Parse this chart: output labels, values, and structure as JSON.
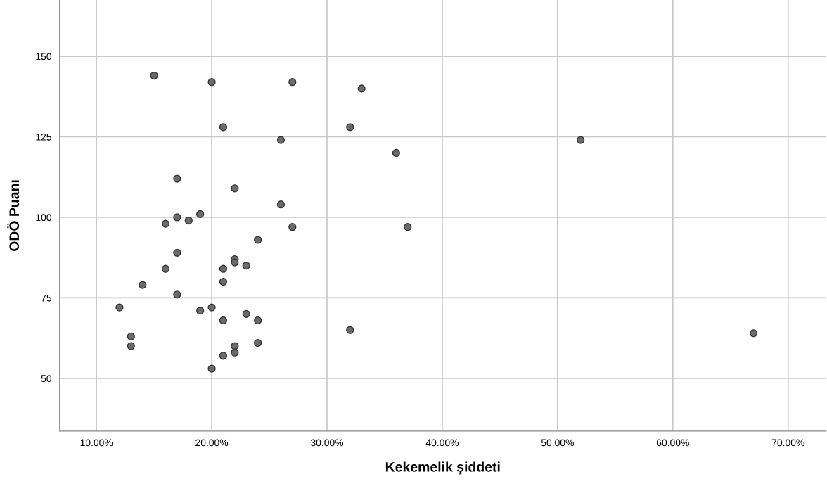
{
  "chart_data": {
    "type": "scatter",
    "xlabel": "Kekemelik şiddeti",
    "ylabel": "ODÖ Puanı",
    "x": [
      15,
      20,
      27,
      33,
      21,
      32,
      26,
      52,
      36,
      17,
      22,
      26,
      19,
      17,
      18,
      16,
      27,
      37,
      24,
      17,
      22,
      22,
      23,
      16,
      21,
      21,
      14,
      17,
      12,
      20,
      19,
      23,
      21,
      24,
      32,
      67,
      13,
      13,
      22,
      24,
      22,
      21,
      20
    ],
    "series": [
      {
        "color": "#6b6b6b",
        "values": [
          144,
          142,
          142,
          140,
          128,
          128,
          124,
          124,
          120,
          112,
          109,
          104,
          101,
          100,
          99,
          98,
          97,
          97,
          93,
          89,
          87,
          86,
          85,
          84,
          84,
          80,
          79,
          76,
          72,
          72,
          71,
          70,
          68,
          68,
          65,
          64,
          63,
          60,
          60,
          61,
          58,
          57,
          53
        ]
      }
    ],
    "xlim": [
      6.8,
      73.3
    ],
    "ylim": [
      33.6,
      167.5
    ],
    "xticks": [
      {
        "value": 10,
        "label": "10.00%"
      },
      {
        "value": 20,
        "label": "20.00%"
      },
      {
        "value": 30,
        "label": "30.00%"
      },
      {
        "value": 40,
        "label": "40.00%"
      },
      {
        "value": 50,
        "label": "50.00%"
      },
      {
        "value": 60,
        "label": "60.00%"
      },
      {
        "value": 70,
        "label": "70.00%"
      }
    ],
    "yticks": [
      50,
      75,
      100,
      125,
      150
    ],
    "grid": true,
    "marker": "circle",
    "legend": false
  }
}
